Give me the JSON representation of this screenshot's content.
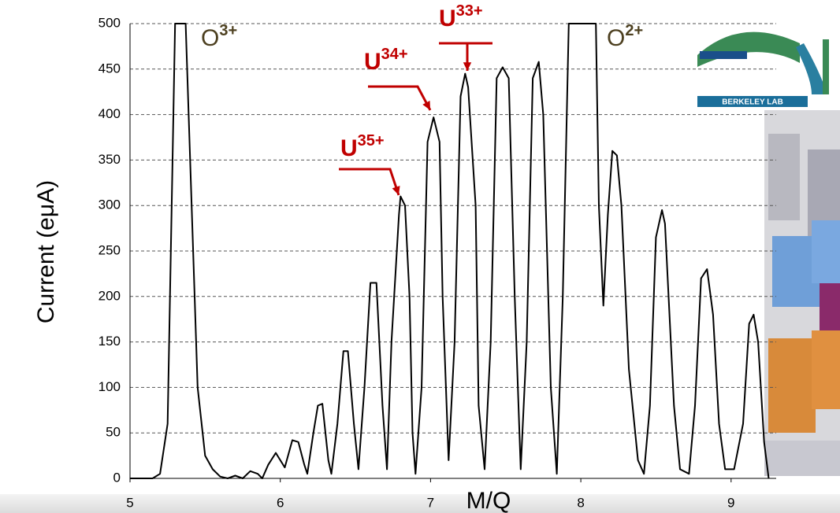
{
  "chart_data": {
    "type": "line",
    "ylabel": "Current (eμA)",
    "xlabel": "M/Q",
    "xlim": [
      5,
      9.3
    ],
    "xticks": [
      5,
      6,
      7,
      8,
      9
    ],
    "ylim": [
      0,
      500
    ],
    "yticks": [
      0,
      50,
      100,
      150,
      200,
      250,
      300,
      350,
      400,
      450,
      500
    ],
    "grid": true,
    "color": "#000000",
    "x": [
      5.0,
      5.15,
      5.2,
      5.25,
      5.3,
      5.37,
      5.45,
      5.5,
      5.55,
      5.6,
      5.65,
      5.7,
      5.75,
      5.8,
      5.85,
      5.88,
      5.92,
      5.97,
      6.0,
      6.03,
      6.08,
      6.12,
      6.16,
      6.18,
      6.22,
      6.25,
      6.28,
      6.32,
      6.34,
      6.38,
      6.42,
      6.45,
      6.49,
      6.52,
      6.56,
      6.6,
      6.64,
      6.68,
      6.71,
      6.74,
      6.79,
      6.8,
      6.83,
      6.86,
      6.88,
      6.9,
      6.94,
      6.98,
      7.02,
      7.06,
      7.08,
      7.12,
      7.16,
      7.2,
      7.23,
      7.25,
      7.3,
      7.32,
      7.36,
      7.4,
      7.44,
      7.48,
      7.52,
      7.56,
      7.6,
      7.64,
      7.68,
      7.72,
      7.75,
      7.8,
      7.84,
      7.88,
      7.92,
      8.1,
      8.12,
      8.15,
      8.18,
      8.21,
      8.24,
      8.27,
      8.32,
      8.38,
      8.42,
      8.46,
      8.5,
      8.54,
      8.56,
      8.62,
      8.66,
      8.72,
      8.76,
      8.8,
      8.84,
      8.88,
      8.92,
      8.96,
      9.02,
      9.08,
      9.12,
      9.15,
      9.18,
      9.22,
      9.25
    ],
    "values": [
      0,
      0,
      5,
      60,
      500,
      500,
      100,
      25,
      10,
      2,
      0,
      3,
      0,
      8,
      5,
      0,
      15,
      28,
      20,
      12,
      42,
      40,
      15,
      5,
      50,
      80,
      82,
      20,
      5,
      60,
      140,
      140,
      60,
      10,
      100,
      215,
      215,
      80,
      10,
      150,
      290,
      310,
      300,
      200,
      50,
      5,
      100,
      370,
      397,
      370,
      200,
      20,
      150,
      420,
      445,
      430,
      300,
      80,
      10,
      150,
      440,
      452,
      440,
      200,
      10,
      150,
      440,
      458,
      400,
      100,
      5,
      200,
      500,
      500,
      300,
      190,
      290,
      360,
      355,
      300,
      120,
      20,
      5,
      80,
      265,
      295,
      280,
      80,
      10,
      5,
      80,
      220,
      230,
      180,
      60,
      10,
      10,
      60,
      170,
      180,
      150,
      40,
      0
    ],
    "annotations": [
      {
        "text": "O",
        "sup": "3+"
      },
      {
        "text": "O",
        "sup": "2+"
      },
      {
        "text": "U",
        "sup": "35+"
      },
      {
        "text": "U",
        "sup": "34+"
      },
      {
        "text": "U",
        "sup": "33+"
      }
    ]
  },
  "logo": {
    "text": "BERKELEY LAB"
  }
}
